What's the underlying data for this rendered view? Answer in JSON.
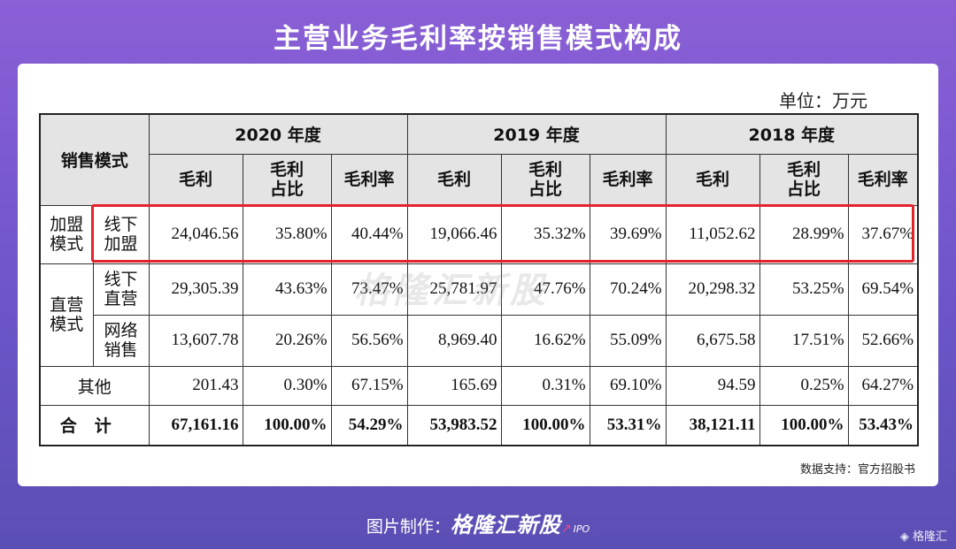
{
  "title": "主营业务毛利率按销售模式构成",
  "unit": "单位：万元",
  "watermark": "格隆汇新股",
  "source": "数据支持：官方招股书",
  "footer": {
    "prefix": "图片制作：",
    "brand": "格隆汇新股",
    "ipo": "IPO"
  },
  "corner_logo": "格隆汇",
  "table": {
    "mode_header": "销售模式",
    "years": [
      "2020 年度",
      "2019 年度",
      "2018 年度"
    ],
    "subheaders": {
      "gross": "毛利",
      "share_1": "毛利",
      "share_2": "占比",
      "rate": "毛利率"
    },
    "groups": {
      "franchise": {
        "a": "加盟",
        "b": "模式"
      },
      "direct": {
        "a": "直营",
        "b": "模式"
      }
    },
    "rows": [
      {
        "sub_a": "线下",
        "sub_b": "加盟",
        "values": [
          "24,046.56",
          "35.80%",
          "40.44%",
          "19,066.46",
          "35.32%",
          "39.69%",
          "11,052.62",
          "28.99%",
          "37.67%"
        ]
      },
      {
        "sub_a": "线下",
        "sub_b": "直营",
        "values": [
          "29,305.39",
          "43.63%",
          "73.47%",
          "25,781.97",
          "47.76%",
          "70.24%",
          "20,298.32",
          "53.25%",
          "69.54%"
        ]
      },
      {
        "sub_a": "网络",
        "sub_b": "销售",
        "values": [
          "13,607.78",
          "20.26%",
          "56.56%",
          "8,969.40",
          "16.62%",
          "55.09%",
          "6,675.58",
          "17.51%",
          "52.66%"
        ]
      },
      {
        "label": "其他",
        "values": [
          "201.43",
          "0.30%",
          "67.15%",
          "165.69",
          "0.31%",
          "69.10%",
          "94.59",
          "0.25%",
          "64.27%"
        ]
      },
      {
        "label": "合计",
        "values": [
          "67,161.16",
          "100.00%",
          "54.29%",
          "53,983.52",
          "100.00%",
          "53.31%",
          "38,121.11",
          "100.00%",
          "53.43%"
        ]
      }
    ]
  }
}
